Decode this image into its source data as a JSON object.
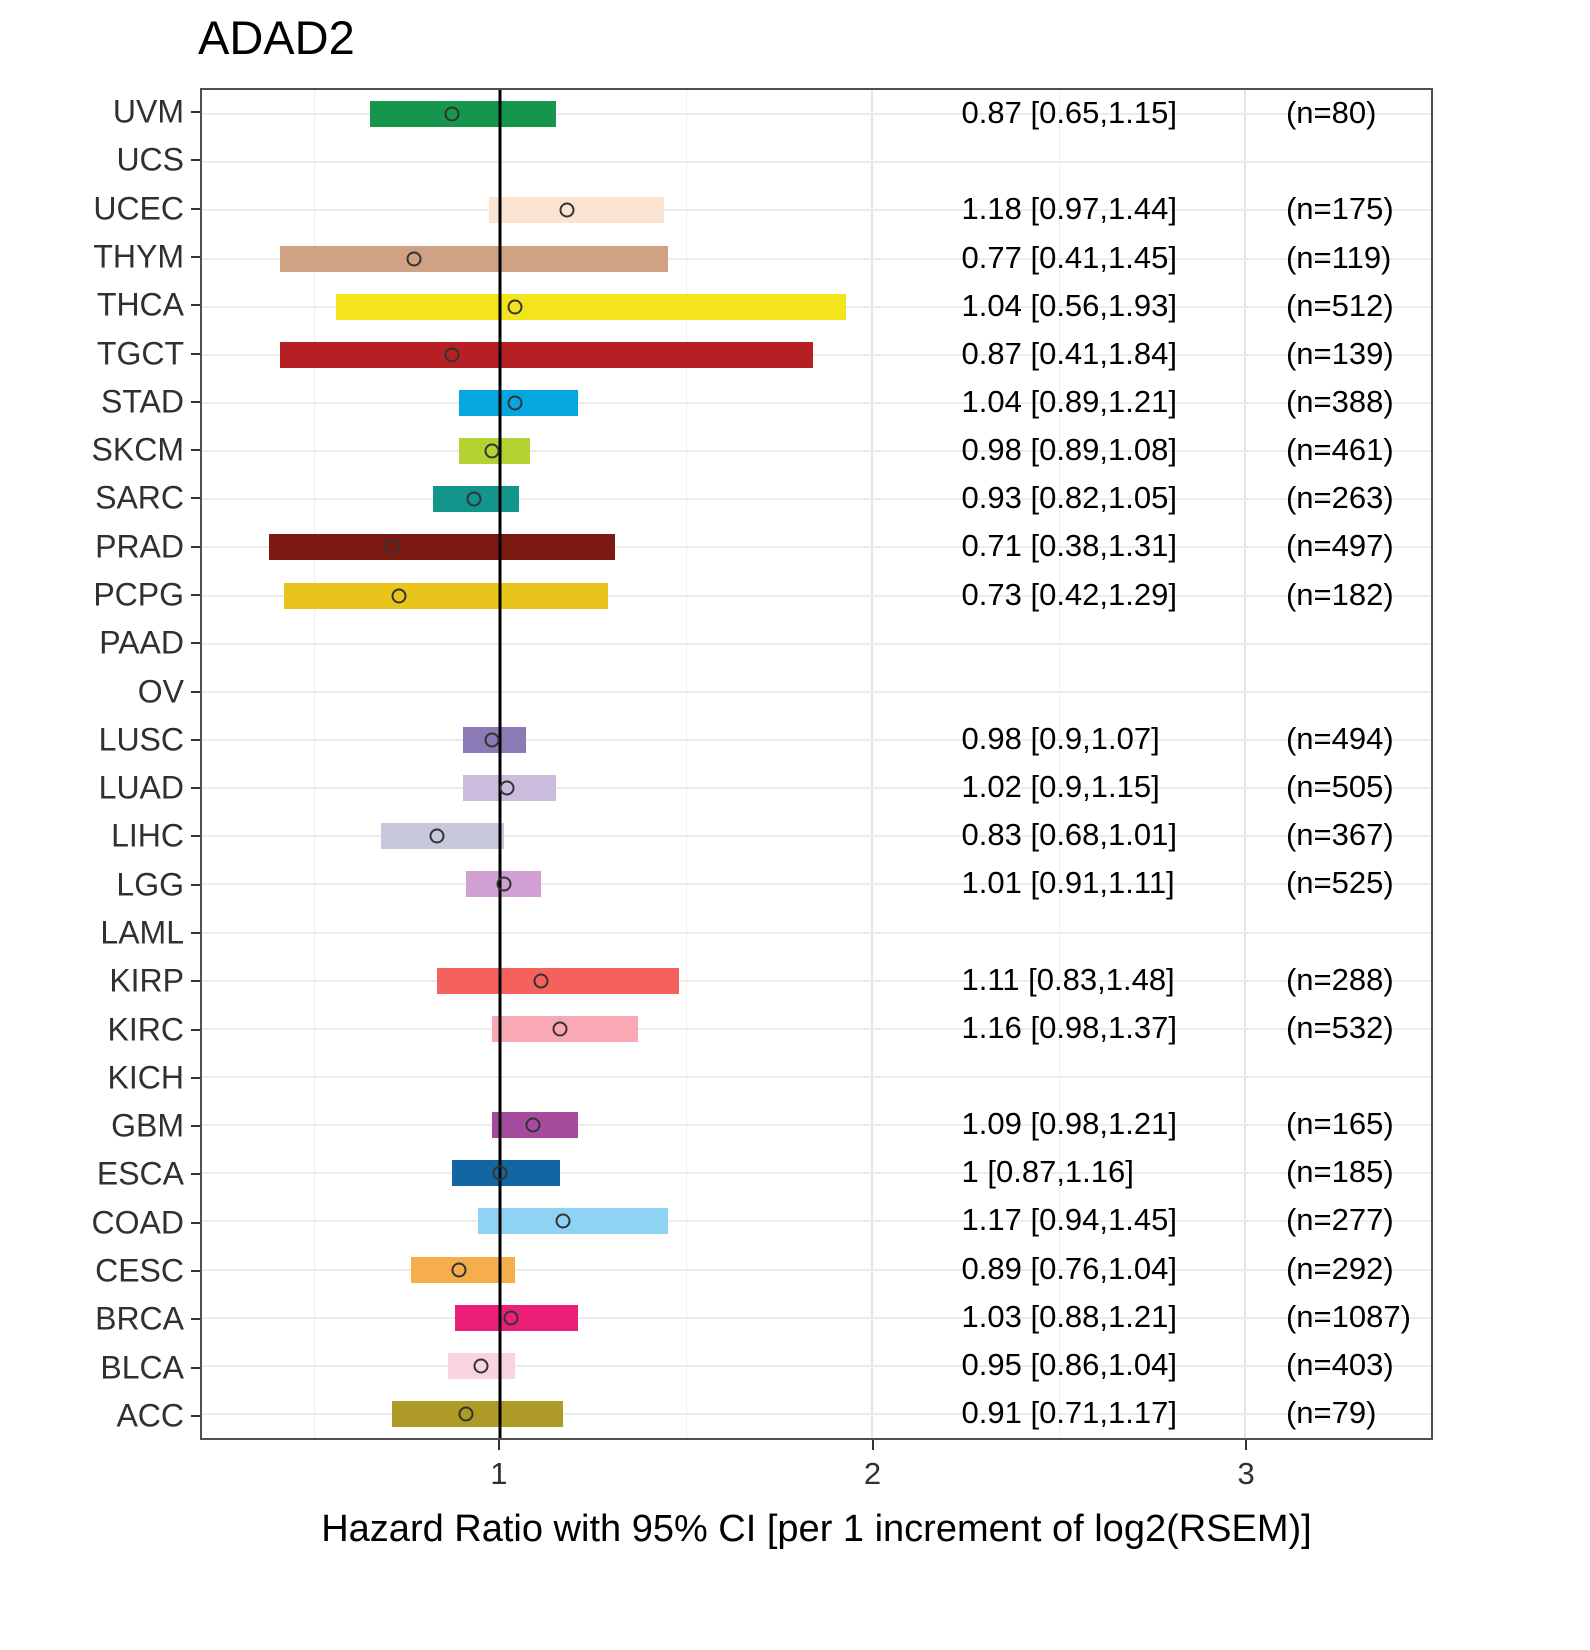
{
  "chart_data": {
    "type": "forest",
    "title": "ADAD2",
    "xlabel": "Hazard Ratio with 95% CI [per 1 increment of log2(RSEM)]",
    "xlim": [
      0.2,
      3.5
    ],
    "x_major_ticks": [
      1,
      2,
      3
    ],
    "x_tick_labels": [
      "1",
      "2",
      "3"
    ],
    "x_minor_ticks": [
      0.5,
      1.5,
      2.5,
      3.5
    ],
    "reference_line": 1,
    "grid": true,
    "legend": "none",
    "rows": [
      {
        "label": "UVM",
        "hr": 0.87,
        "lo": 0.65,
        "hi": 1.15,
        "n": 80,
        "hr_text": "0.87 [0.65,1.15]",
        "n_text": "(n=80)",
        "color": "#16964d"
      },
      {
        "label": "UCS"
      },
      {
        "label": "UCEC",
        "hr": 1.18,
        "lo": 0.97,
        "hi": 1.44,
        "n": 175,
        "hr_text": "1.18 [0.97,1.44]",
        "n_text": "(n=175)",
        "color": "#fbe5d2"
      },
      {
        "label": "THYM",
        "hr": 0.77,
        "lo": 0.41,
        "hi": 1.45,
        "n": 119,
        "hr_text": "0.77 [0.41,1.45]",
        "n_text": "(n=119)",
        "color": "#cfa284"
      },
      {
        "label": "THCA",
        "hr": 1.04,
        "lo": 0.56,
        "hi": 1.93,
        "n": 512,
        "hr_text": "1.04 [0.56,1.93]",
        "n_text": "(n=512)",
        "color": "#f3e41c"
      },
      {
        "label": "TGCT",
        "hr": 0.87,
        "lo": 0.41,
        "hi": 1.84,
        "n": 139,
        "hr_text": "0.87 [0.41,1.84]",
        "n_text": "(n=139)",
        "color": "#b52025"
      },
      {
        "label": "STAD",
        "hr": 1.04,
        "lo": 0.89,
        "hi": 1.21,
        "n": 388,
        "hr_text": "1.04 [0.89,1.21]",
        "n_text": "(n=388)",
        "color": "#06a7e1"
      },
      {
        "label": "SKCM",
        "hr": 0.98,
        "lo": 0.89,
        "hi": 1.08,
        "n": 461,
        "hr_text": "0.98 [0.89,1.08]",
        "n_text": "(n=461)",
        "color": "#b3d334"
      },
      {
        "label": "SARC",
        "hr": 0.93,
        "lo": 0.82,
        "hi": 1.05,
        "n": 263,
        "hr_text": "0.93 [0.82,1.05]",
        "n_text": "(n=263)",
        "color": "#12968b"
      },
      {
        "label": "PRAD",
        "hr": 0.71,
        "lo": 0.38,
        "hi": 1.31,
        "n": 497,
        "hr_text": "0.71 [0.38,1.31]",
        "n_text": "(n=497)",
        "color": "#7c1a12"
      },
      {
        "label": "PCPG",
        "hr": 0.73,
        "lo": 0.42,
        "hi": 1.29,
        "n": 182,
        "hr_text": "0.73 [0.42,1.29]",
        "n_text": "(n=182)",
        "color": "#e9c51c"
      },
      {
        "label": "PAAD"
      },
      {
        "label": "OV"
      },
      {
        "label": "LUSC",
        "hr": 0.98,
        "lo": 0.9,
        "hi": 1.07,
        "n": 494,
        "hr_text": "0.98 [0.9,1.07]",
        "n_text": "(n=494)",
        "color": "#8a7ab5"
      },
      {
        "label": "LUAD",
        "hr": 1.02,
        "lo": 0.9,
        "hi": 1.15,
        "n": 505,
        "hr_text": "1.02 [0.9,1.15]",
        "n_text": "(n=505)",
        "color": "#cabdde"
      },
      {
        "label": "LIHC",
        "hr": 0.83,
        "lo": 0.68,
        "hi": 1.01,
        "n": 367,
        "hr_text": "0.83 [0.68,1.01]",
        "n_text": "(n=367)",
        "color": "#c8c8dc"
      },
      {
        "label": "LGG",
        "hr": 1.01,
        "lo": 0.91,
        "hi": 1.11,
        "n": 525,
        "hr_text": "1.01 [0.91,1.11]",
        "n_text": "(n=525)",
        "color": "#d3a0d3"
      },
      {
        "label": "LAML"
      },
      {
        "label": "KIRP",
        "hr": 1.11,
        "lo": 0.83,
        "hi": 1.48,
        "n": 288,
        "hr_text": "1.11 [0.83,1.48]",
        "n_text": "(n=288)",
        "color": "#f5625e"
      },
      {
        "label": "KIRC",
        "hr": 1.16,
        "lo": 0.98,
        "hi": 1.37,
        "n": 532,
        "hr_text": "1.16 [0.98,1.37]",
        "n_text": "(n=532)",
        "color": "#f8a9b4"
      },
      {
        "label": "KICH"
      },
      {
        "label": "GBM",
        "hr": 1.09,
        "lo": 0.98,
        "hi": 1.21,
        "n": 165,
        "hr_text": "1.09 [0.98,1.21]",
        "n_text": "(n=165)",
        "color": "#a44b9d"
      },
      {
        "label": "ESCA",
        "hr": 1.0,
        "lo": 0.87,
        "hi": 1.16,
        "n": 185,
        "hr_text": "1 [0.87,1.16]",
        "n_text": "(n=185)",
        "color": "#1267a2"
      },
      {
        "label": "COAD",
        "hr": 1.17,
        "lo": 0.94,
        "hi": 1.45,
        "n": 277,
        "hr_text": "1.17 [0.94,1.45]",
        "n_text": "(n=277)",
        "color": "#8fd3f4"
      },
      {
        "label": "CESC",
        "hr": 0.89,
        "lo": 0.76,
        "hi": 1.04,
        "n": 292,
        "hr_text": "0.89 [0.76,1.04]",
        "n_text": "(n=292)",
        "color": "#f6ad4b"
      },
      {
        "label": "BRCA",
        "hr": 1.03,
        "lo": 0.88,
        "hi": 1.21,
        "n": 1087,
        "hr_text": "1.03 [0.88,1.21]",
        "n_text": "(n=1087)",
        "color": "#ec1f78"
      },
      {
        "label": "BLCA",
        "hr": 0.95,
        "lo": 0.86,
        "hi": 1.04,
        "n": 403,
        "hr_text": "0.95 [0.86,1.04]",
        "n_text": "(n=403)",
        "color": "#f9d3dd"
      },
      {
        "label": "ACC",
        "hr": 0.91,
        "lo": 0.71,
        "hi": 1.17,
        "n": 79,
        "hr_text": "0.91 [0.71,1.17]",
        "n_text": "(n=79)",
        "color": "#ae9a27"
      }
    ]
  }
}
